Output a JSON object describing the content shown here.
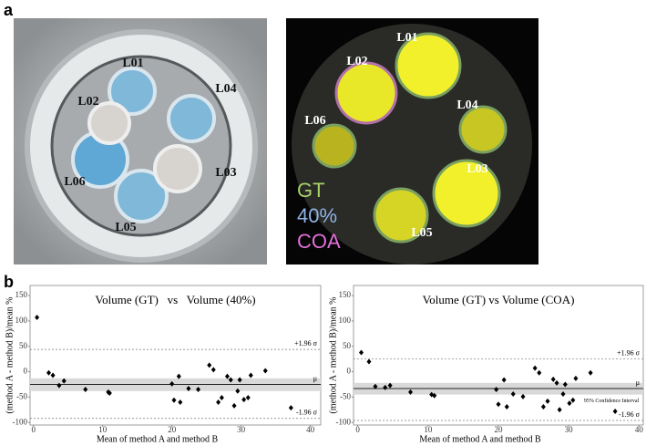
{
  "figure": {
    "panel_a": "a",
    "panel_b": "b",
    "left_photo_labels": [
      "L01",
      "L04",
      "L02",
      "L06",
      "L03",
      "L05"
    ],
    "right_photo_labels": [
      "L01",
      "L02",
      "L04",
      "L06",
      "L03",
      "L05"
    ],
    "legend": [
      {
        "text": "GT",
        "color": "#a6d36a"
      },
      {
        "text": "40%",
        "color": "#8fb4e8"
      },
      {
        "text": "COA",
        "color": "#e070d8"
      }
    ]
  },
  "chart_data": [
    {
      "type": "scatter",
      "title": "Volume (GT)   vs   Volume (40%)",
      "xlabel": "Mean of method A and method B",
      "ylabel": "(method A - method B)/mean %",
      "color": "#000000",
      "x": [
        0.5,
        2.2,
        2.8,
        3.7,
        4.4,
        7.5,
        10.8,
        11,
        20,
        20.3,
        21,
        21.2,
        22.4,
        23.8,
        25.4,
        26,
        26.7,
        27.2,
        28,
        28.5,
        29,
        29.5,
        29.8,
        30.4,
        31,
        31.4,
        33.5,
        37.2
      ],
      "values": [
        107,
        -2,
        -7,
        -27,
        -18,
        -35,
        -40,
        -42,
        -24,
        -56,
        -9,
        -60,
        -33,
        -35,
        13,
        4,
        -60,
        -51,
        -9,
        -16,
        -67,
        -38,
        -16,
        -55,
        -51,
        -7,
        2,
        -71
      ],
      "xlim": [
        -0.5,
        41.5
      ],
      "ylim": [
        -105,
        170
      ],
      "xticks": [
        0,
        10,
        20,
        30,
        40
      ],
      "yticks": [
        150,
        100,
        50,
        0,
        -50,
        -100
      ],
      "reference_lines": [
        {
          "label": "+1.96 σ",
          "value": 44
        },
        {
          "label": "μ",
          "value": -25
        },
        {
          "label": "-1.96 σ",
          "value": -92
        }
      ],
      "band": {
        "range": [
          -38,
          -13
        ]
      }
    },
    {
      "type": "scatter",
      "title": "Volume (GT) vs Volume (COA)",
      "xlabel": "Mean of method A and method B",
      "ylabel": "(method A - method B)/mean %",
      "color": "#000000",
      "x": [
        0.5,
        1.6,
        2.5,
        3.9,
        4.6,
        7.5,
        10.5,
        10.9,
        19.7,
        20,
        20.8,
        21.2,
        22.1,
        23.5,
        25.2,
        25.8,
        26.4,
        27,
        27.8,
        28.3,
        28.7,
        29.2,
        29.5,
        30.1,
        30.6,
        31,
        33.1,
        36.6
      ],
      "values": [
        38,
        20,
        -29,
        -31,
        -27,
        -40,
        -45,
        -47,
        -35,
        -64,
        -16,
        -69,
        -44,
        -49,
        7,
        -2,
        -69,
        -58,
        -15,
        -22,
        -75,
        -44,
        -25,
        -62,
        -56,
        -13,
        -2,
        -78
      ],
      "xlim": [
        -0.6,
        40.6
      ],
      "ylim": [
        -105,
        170
      ],
      "xticks": [
        0,
        10,
        20,
        30,
        40
      ],
      "yticks": [
        150,
        100,
        50,
        0,
        -50,
        -100
      ],
      "reference_lines": [
        {
          "label": "+1.96 σ",
          "value": 25
        },
        {
          "label": "μ",
          "value": -33
        },
        {
          "label": "-1.96 σ",
          "value": -96
        }
      ],
      "band": {
        "label": "95% Confidence Interval",
        "range": [
          -45,
          -22
        ]
      }
    }
  ]
}
